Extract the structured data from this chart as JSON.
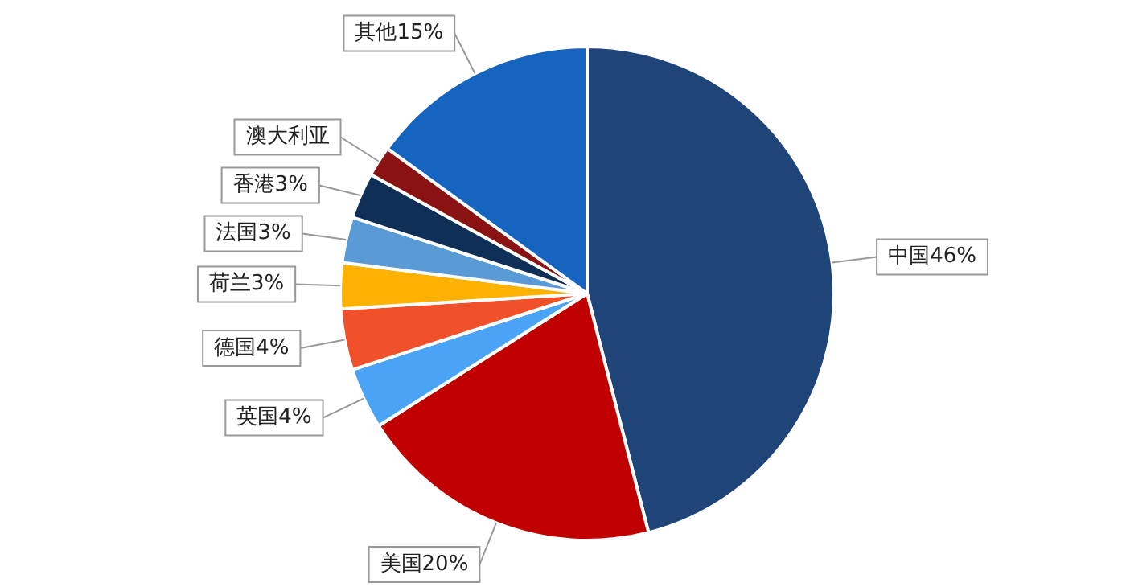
{
  "chart_data": {
    "type": "pie",
    "categories": [
      "中国",
      "美国",
      "英国",
      "德国",
      "荷兰",
      "法国",
      "香港",
      "澳大利亚",
      "其他"
    ],
    "values": [
      46,
      20,
      4,
      4,
      3,
      3,
      3,
      2,
      15
    ],
    "value_labels": [
      "46%",
      "20%",
      "4%",
      "4%",
      "3%",
      "3%",
      "3%",
      null,
      "15%"
    ],
    "colors": [
      "#1f4478",
      "#c00000",
      "#4aa3f5",
      "#f0502a",
      "#fdb100",
      "#5b9bd5",
      "#0f2f57",
      "#8a1212",
      "#1565c0"
    ],
    "legend": false
  }
}
